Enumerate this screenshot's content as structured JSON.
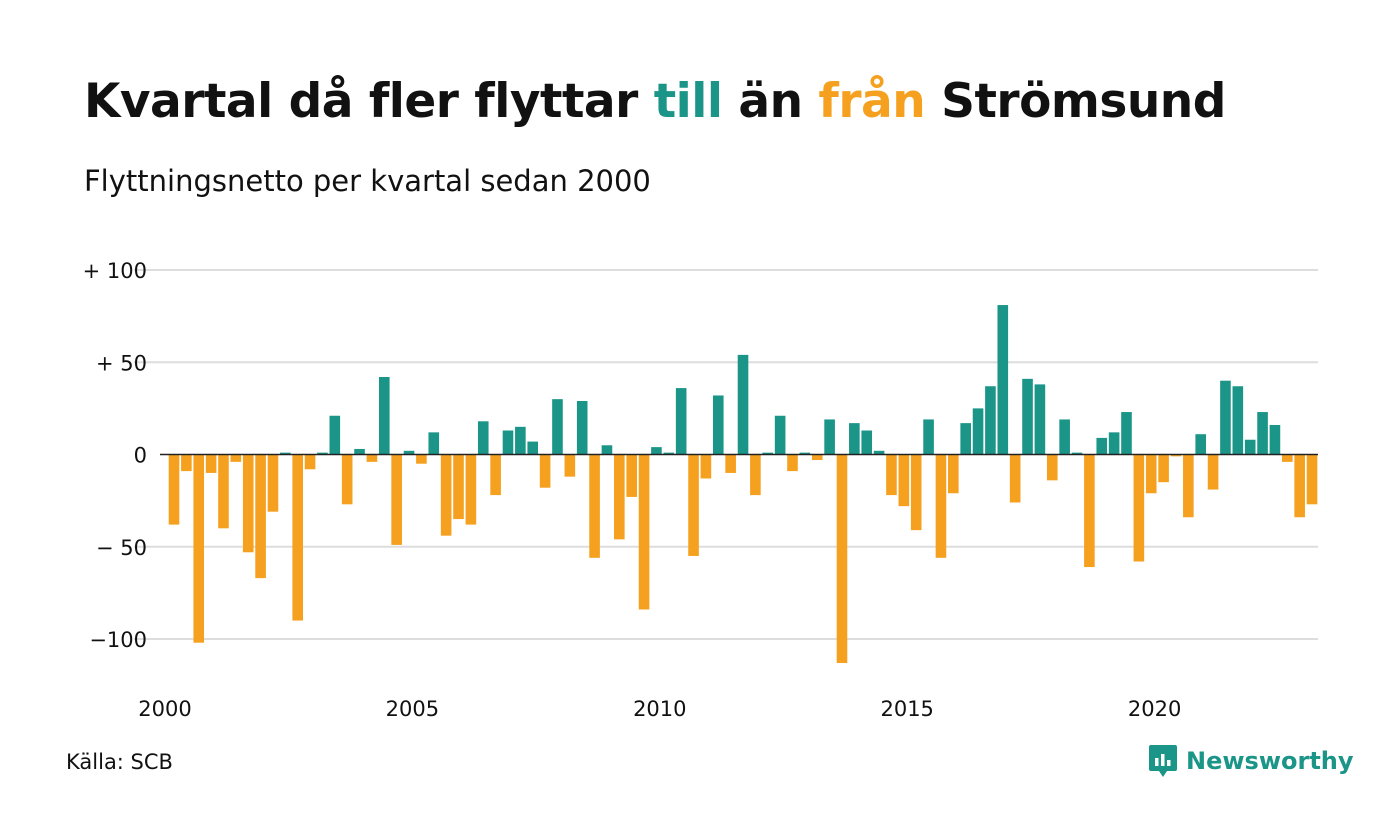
{
  "header": {
    "title_part1": "Kvartal då fler flyttar ",
    "title_pos_word": "till",
    "title_part2": " än ",
    "title_neg_word": "från",
    "title_part3": " Strömsund",
    "subtitle": "Flyttningsnetto per kvartal sedan 2000"
  },
  "footer": {
    "source": "Källa: SCB",
    "brand": "Newsworthy",
    "brand_icon": "newsworthy-logo-icon"
  },
  "colors": {
    "positive": "#1a9587",
    "negative": "#f5a11f",
    "grid": "#dddddd",
    "zero_line": "#222222",
    "text": "#111111"
  },
  "chart_data": {
    "type": "bar",
    "title": "Kvartal då fler flyttar till än från Strömsund",
    "subtitle": "Flyttningsnetto per kvartal sedan 2000",
    "xlabel": "",
    "ylabel": "",
    "x_start_year": 2000,
    "quarters_per_year": 4,
    "x_tick_labels": [
      "2000",
      "2005",
      "2010",
      "2015",
      "2020"
    ],
    "y_ticks": [
      {
        "value": 100,
        "label": "+ 100"
      },
      {
        "value": 50,
        "label": "+  50"
      },
      {
        "value": 0,
        "label": "0"
      },
      {
        "value": -50,
        "label": "− 50"
      },
      {
        "value": -100,
        "label": "−100"
      }
    ],
    "ylim": [
      -115,
      100
    ],
    "grid": true,
    "values": [
      -38,
      -9,
      -102,
      -10,
      -40,
      -4,
      -53,
      -67,
      -31,
      1,
      -90,
      -8,
      1,
      21,
      -27,
      3,
      -4,
      42,
      -49,
      2,
      -5,
      12,
      -44,
      -35,
      -38,
      18,
      -22,
      13,
      15,
      7,
      -18,
      30,
      -12,
      29,
      -56,
      5,
      -46,
      -23,
      -84,
      4,
      1,
      36,
      -55,
      -13,
      32,
      -10,
      54,
      -22,
      1,
      21,
      -9,
      1,
      -3,
      19,
      -113,
      17,
      13,
      2,
      -22,
      -28,
      -41,
      19,
      -56,
      -21,
      17,
      25,
      37,
      81,
      -26,
      41,
      38,
      -14,
      19,
      1,
      -61,
      9,
      12,
      23,
      -58,
      -21,
      -15,
      -1,
      -34,
      11,
      -19,
      40,
      37,
      8,
      23,
      16,
      -4,
      -34,
      -27
    ]
  }
}
